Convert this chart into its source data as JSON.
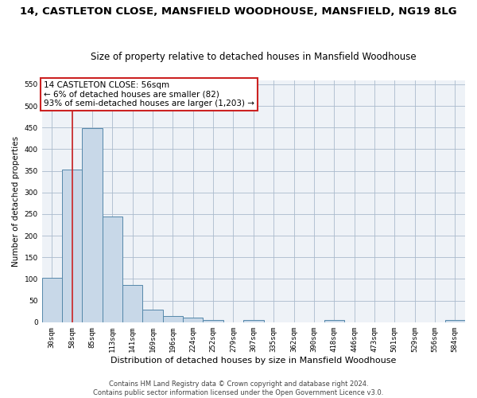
{
  "title1": "14, CASTLETON CLOSE, MANSFIELD WOODHOUSE, MANSFIELD, NG19 8LG",
  "title2": "Size of property relative to detached houses in Mansfield Woodhouse",
  "xlabel": "Distribution of detached houses by size in Mansfield Woodhouse",
  "ylabel": "Number of detached properties",
  "footer1": "Contains HM Land Registry data © Crown copyright and database right 2024.",
  "footer2": "Contains public sector information licensed under the Open Government Licence v3.0.",
  "annotation_title": "14 CASTLETON CLOSE: 56sqm",
  "annotation_line2": "← 6% of detached houses are smaller (82)",
  "annotation_line3": "93% of semi-detached houses are larger (1,203) →",
  "bar_categories": [
    "30sqm",
    "58sqm",
    "85sqm",
    "113sqm",
    "141sqm",
    "169sqm",
    "196sqm",
    "224sqm",
    "252sqm",
    "279sqm",
    "307sqm",
    "335sqm",
    "362sqm",
    "390sqm",
    "418sqm",
    "446sqm",
    "473sqm",
    "501sqm",
    "529sqm",
    "556sqm",
    "584sqm"
  ],
  "bar_values": [
    103,
    353,
    448,
    245,
    87,
    30,
    14,
    10,
    6,
    0,
    6,
    0,
    0,
    0,
    6,
    0,
    0,
    0,
    0,
    0,
    6
  ],
  "bar_color": "#c8d8e8",
  "bar_edge_color": "#5588aa",
  "ylim": [
    0,
    560
  ],
  "yticks": [
    0,
    50,
    100,
    150,
    200,
    250,
    300,
    350,
    400,
    450,
    500,
    550
  ],
  "vline_x_index": 1,
  "vline_color": "#cc2222",
  "bg_color": "#eef2f7",
  "grid_color": "#aabbcc",
  "title_fontsize": 9.5,
  "subtitle_fontsize": 8.5,
  "ylabel_fontsize": 7.5,
  "xlabel_fontsize": 8,
  "tick_fontsize": 6.5,
  "footer_fontsize": 6,
  "annotation_fontsize": 7.5
}
